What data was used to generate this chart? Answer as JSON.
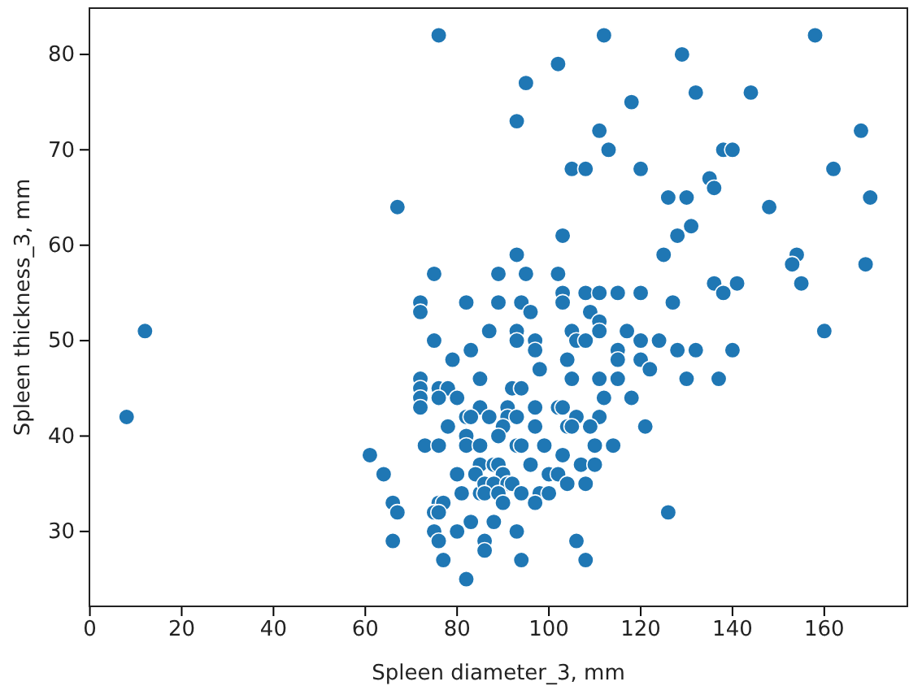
{
  "chart_data": {
    "type": "scatter",
    "xlabel": "Spleen diameter_3, mm",
    "ylabel": "Spleen thickness_3, mm",
    "xlim": [
      -0.1,
      178.1
    ],
    "ylim": [
      22.15,
      84.85
    ],
    "xticks": [
      0,
      20,
      40,
      60,
      80,
      100,
      120,
      140,
      160
    ],
    "yticks": [
      30,
      40,
      50,
      60,
      70,
      80
    ],
    "grid": false,
    "marker": "circle",
    "series": [
      {
        "color": "#1f77b4",
        "x": [
          112,
          158,
          129,
          102,
          95,
          118,
          132,
          144,
          93,
          111,
          168,
          113,
          138,
          140,
          105,
          108,
          120,
          162,
          135,
          136,
          126,
          130,
          170,
          148,
          103,
          131,
          128,
          125,
          93,
          154,
          153,
          169,
          89,
          95,
          102,
          155,
          136,
          141,
          138,
          103,
          108,
          111,
          115,
          120,
          82,
          89,
          94,
          103,
          127,
          96,
          109,
          111,
          87,
          93,
          105,
          111,
          117,
          160,
          76,
          67,
          75,
          72,
          72,
          12,
          8,
          75,
          79,
          83,
          72,
          72,
          72,
          72,
          76,
          78,
          76,
          80,
          85,
          85,
          82,
          83,
          78,
          82,
          73,
          76,
          82,
          85,
          61,
          85,
          64,
          80,
          84,
          81,
          85,
          66,
          67,
          76,
          77,
          75,
          76,
          83,
          75,
          80,
          66,
          76,
          77,
          82,
          86,
          86,
          93,
          97,
          106,
          108,
          120,
          124,
          97,
          115,
          128,
          132,
          140,
          115,
          120,
          104,
          122,
          98,
          105,
          111,
          115,
          130,
          137,
          92,
          94,
          112,
          118,
          91,
          97,
          102,
          103,
          87,
          91,
          93,
          106,
          111,
          90,
          97,
          104,
          105,
          109,
          121,
          89,
          93,
          94,
          99,
          110,
          114,
          103,
          88,
          89,
          96,
          107,
          110,
          90,
          100,
          102,
          86,
          88,
          91,
          92,
          104,
          108,
          86,
          89,
          94,
          98,
          100,
          90,
          97,
          126,
          88,
          93,
          106,
          94,
          108
        ],
        "values": [
          82,
          82,
          80,
          79,
          77,
          75,
          76,
          76,
          73,
          72,
          72,
          70,
          70,
          70,
          68,
          68,
          68,
          68,
          67,
          66,
          65,
          65,
          65,
          64,
          61,
          62,
          61,
          59,
          59,
          59,
          58,
          58,
          57,
          57,
          57,
          56,
          56,
          56,
          55,
          55,
          55,
          55,
          55,
          55,
          54,
          54,
          54,
          54,
          54,
          53,
          53,
          52,
          51,
          51,
          51,
          51,
          51,
          51,
          82,
          64,
          57,
          54,
          53,
          51,
          42,
          50,
          48,
          49,
          46,
          45,
          44,
          43,
          45,
          45,
          44,
          44,
          46,
          43,
          42,
          42,
          41,
          40,
          39,
          39,
          39,
          39,
          38,
          37,
          36,
          36,
          36,
          34,
          34,
          33,
          32,
          33,
          33,
          32,
          32,
          31,
          30,
          30,
          29,
          29,
          27,
          25,
          29,
          28,
          50,
          50,
          50,
          50,
          50,
          50,
          49,
          49,
          49,
          49,
          49,
          48,
          48,
          48,
          47,
          47,
          46,
          46,
          46,
          46,
          46,
          45,
          45,
          44,
          44,
          43,
          43,
          43,
          43,
          42,
          42,
          42,
          42,
          42,
          41,
          41,
          41,
          41,
          41,
          41,
          40,
          39,
          39,
          39,
          39,
          39,
          38,
          37,
          37,
          37,
          37,
          37,
          36,
          36,
          36,
          35,
          35,
          35,
          35,
          35,
          35,
          34,
          34,
          34,
          34,
          34,
          33,
          33,
          32,
          31,
          30,
          29,
          27,
          27
        ]
      }
    ]
  }
}
